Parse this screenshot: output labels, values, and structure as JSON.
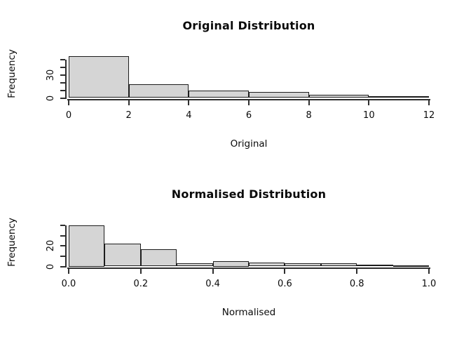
{
  "background": "#ffffff",
  "chart_data": [
    {
      "type": "histogram",
      "title": "Original Distribution",
      "xlabel": "Original",
      "ylabel": "Frequency",
      "bins_start": 0,
      "bin_width": 2,
      "categories": [
        "0-2",
        "2-4",
        "4-6",
        "6-8",
        "8-10",
        "10-12"
      ],
      "counts": [
        55,
        18,
        10,
        8,
        4,
        2
      ],
      "xlim": [
        0,
        12
      ],
      "ylim": [
        0,
        50
      ],
      "grid": "off",
      "x_ticks": [
        {
          "v": 0,
          "label": "0"
        },
        {
          "v": 2,
          "label": "2"
        },
        {
          "v": 4,
          "label": "4"
        },
        {
          "v": 6,
          "label": "6"
        },
        {
          "v": 8,
          "label": "8"
        },
        {
          "v": 10,
          "label": "10"
        },
        {
          "v": 12,
          "label": "12"
        }
      ],
      "y_ticks": [
        {
          "v": 0,
          "label": "0"
        },
        {
          "v": 10,
          "label": ""
        },
        {
          "v": 20,
          "label": ""
        },
        {
          "v": 30,
          "label": "30"
        },
        {
          "v": 40,
          "label": ""
        },
        {
          "v": 50,
          "label": ""
        }
      ],
      "bar_fill": "#d5d5d5",
      "bar_border": "#1d1d1d"
    },
    {
      "type": "histogram",
      "title": "Normalised Distribution",
      "xlabel": "Normalised",
      "ylabel": "Frequency",
      "bins_start": 0,
      "bin_width": 0.1,
      "categories": [
        "0.0-0.1",
        "0.1-0.2",
        "0.2-0.3",
        "0.3-0.4",
        "0.4-0.5",
        "0.5-0.6",
        "0.6-0.7",
        "0.7-0.8",
        "0.8-0.9",
        "0.9-1.0"
      ],
      "counts": [
        40,
        22,
        17,
        3,
        5,
        4,
        3,
        3,
        2,
        1
      ],
      "xlim": [
        0,
        1
      ],
      "ylim": [
        0,
        40
      ],
      "grid": "off",
      "x_ticks": [
        {
          "v": 0,
          "label": "0.0"
        },
        {
          "v": 0.2,
          "label": "0.2"
        },
        {
          "v": 0.4,
          "label": "0.4"
        },
        {
          "v": 0.6,
          "label": "0.6"
        },
        {
          "v": 0.8,
          "label": "0.8"
        },
        {
          "v": 1,
          "label": "1.0"
        }
      ],
      "y_ticks": [
        {
          "v": 0,
          "label": "0"
        },
        {
          "v": 10,
          "label": ""
        },
        {
          "v": 20,
          "label": "20"
        },
        {
          "v": 30,
          "label": ""
        },
        {
          "v": 40,
          "label": ""
        }
      ],
      "bar_fill": "#d5d5d5",
      "bar_border": "#1d1d1d"
    }
  ]
}
